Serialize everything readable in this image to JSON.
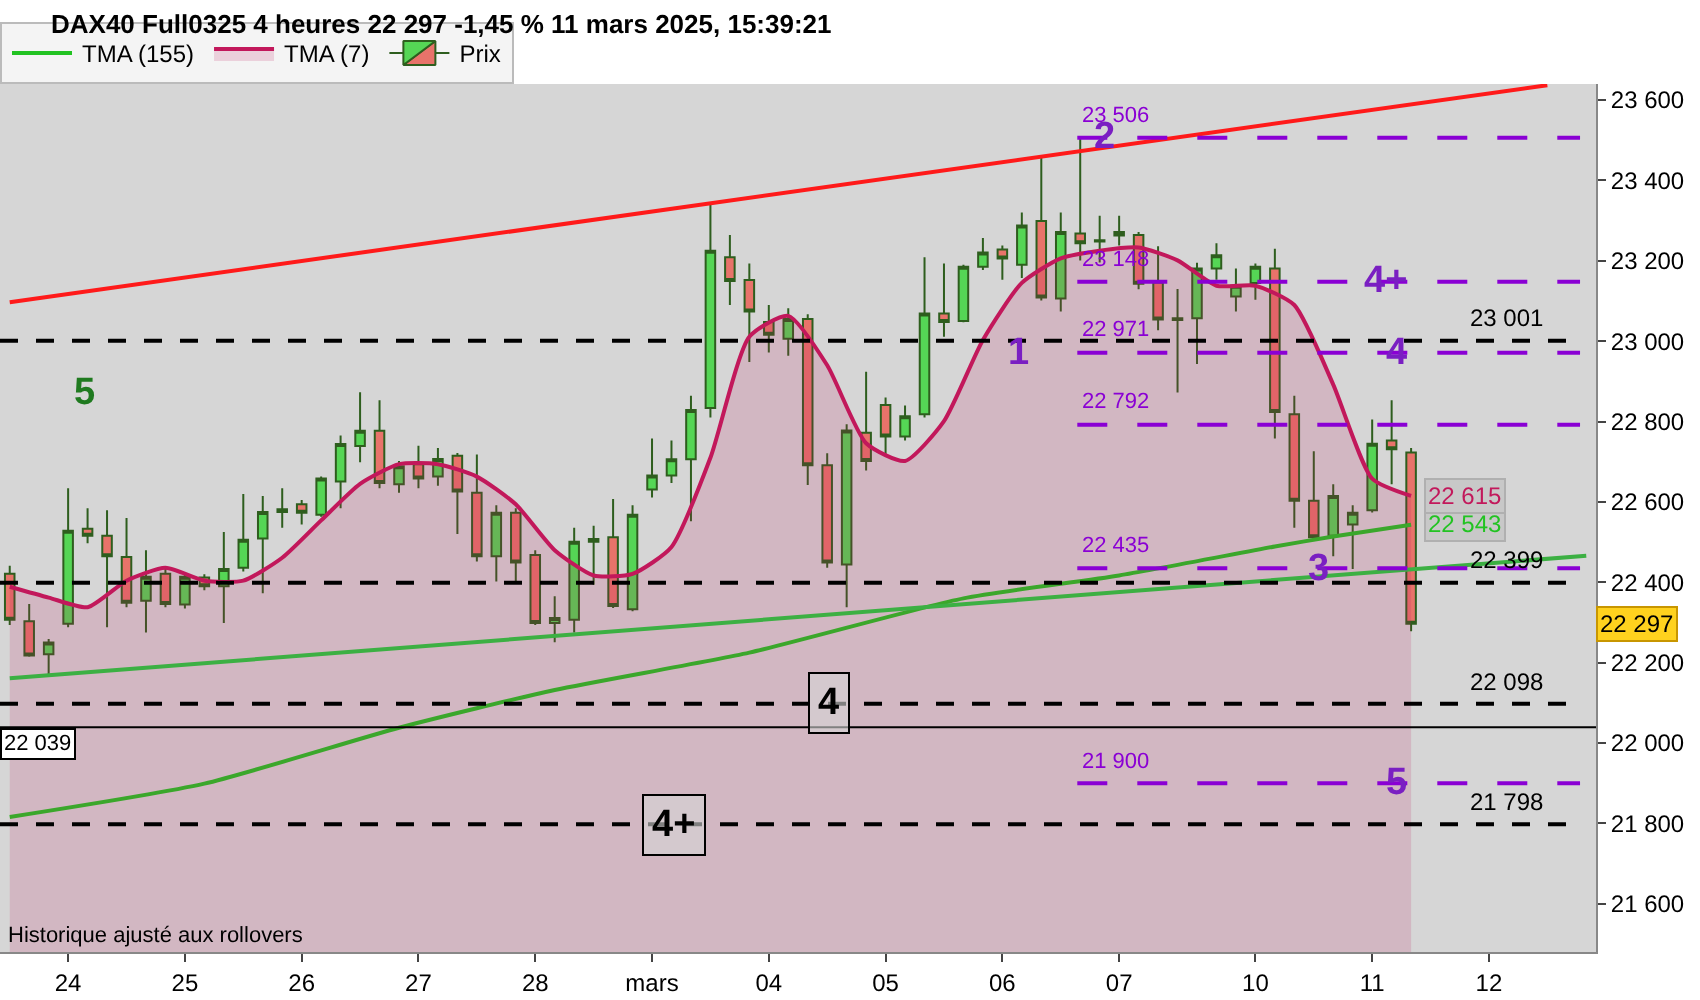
{
  "chart_data": {
    "type": "candlestick",
    "title": "DAX40 Full0325 4 heures 22 297 -1,45 % 11 mars 2025, 15:39:21",
    "categories": [
      null,
      null,
      null,
      "24",
      null,
      null,
      null,
      null,
      null,
      "25",
      null,
      null,
      null,
      null,
      null,
      "26",
      null,
      null,
      null,
      null,
      null,
      "27",
      null,
      null,
      null,
      null,
      null,
      "28",
      null,
      null,
      null,
      null,
      null,
      "mars",
      null,
      null,
      null,
      null,
      null,
      "04",
      null,
      null,
      null,
      null,
      null,
      "05",
      null,
      null,
      null,
      null,
      null,
      "06",
      null,
      null,
      null,
      null,
      null,
      "07",
      null,
      null,
      null,
      null,
      null,
      null,
      "10",
      null,
      null,
      null,
      null,
      null,
      "11",
      null,
      null,
      null,
      null,
      null,
      "12",
      null,
      null,
      null,
      null,
      null
    ],
    "series": [
      {
        "name": "Prix",
        "color": "#2e5e1e",
        "ohlc": [
          [
            22421,
            22441,
            22294,
            22307
          ],
          [
            22303,
            22346,
            22215,
            22218
          ],
          [
            22221,
            22259,
            22167,
            22250
          ],
          [
            22297,
            22634,
            22288,
            22528
          ],
          [
            22533,
            22584,
            22497,
            22516
          ],
          [
            22516,
            22579,
            22288,
            22465
          ],
          [
            22463,
            22560,
            22338,
            22349
          ],
          [
            22354,
            22480,
            22275,
            22414
          ],
          [
            22421,
            22433,
            22338,
            22346
          ],
          [
            22345,
            22425,
            22335,
            22414
          ],
          [
            22412,
            22420,
            22380,
            22390
          ],
          [
            22390,
            22525,
            22299,
            22433
          ],
          [
            22436,
            22620,
            22427,
            22506
          ],
          [
            22509,
            22615,
            22373,
            22575
          ],
          [
            22575,
            22634,
            22536,
            22582
          ],
          [
            22594,
            22605,
            22544,
            22573
          ],
          [
            22568,
            22663,
            22563,
            22658
          ],
          [
            22651,
            22765,
            22584,
            22744
          ],
          [
            22739,
            22873,
            22699,
            22777
          ],
          [
            22777,
            22853,
            22634,
            22647
          ],
          [
            22644,
            22702,
            22623,
            22689
          ],
          [
            22694,
            22740,
            22634,
            22658
          ],
          [
            22663,
            22734,
            22640,
            22707
          ],
          [
            22715,
            22722,
            22520,
            22626
          ],
          [
            22623,
            22718,
            22452,
            22465
          ],
          [
            22465,
            22592,
            22402,
            22573
          ],
          [
            22573,
            22584,
            22402,
            22449
          ],
          [
            22468,
            22480,
            22294,
            22299
          ],
          [
            22299,
            22365,
            22251,
            22311
          ],
          [
            22307,
            22536,
            22275,
            22501
          ],
          [
            22501,
            22541,
            22394,
            22508
          ],
          [
            22512,
            22607,
            22336,
            22341
          ],
          [
            22333,
            22592,
            22328,
            22568
          ],
          [
            22631,
            22758,
            22611,
            22666
          ],
          [
            22666,
            22753,
            22647,
            22706
          ],
          [
            22706,
            22864,
            22552,
            22829
          ],
          [
            22834,
            23339,
            22810,
            23225
          ],
          [
            23209,
            23264,
            23090,
            23150
          ],
          [
            23152,
            23193,
            22948,
            23074
          ],
          [
            23048,
            23090,
            22972,
            23016
          ],
          [
            23006,
            23082,
            22964,
            23055
          ],
          [
            23055,
            23067,
            22642,
            22691
          ],
          [
            22691,
            22721,
            22436,
            22449
          ],
          [
            22444,
            22793,
            22338,
            22778
          ],
          [
            22772,
            22924,
            22678,
            22702
          ],
          [
            22841,
            22860,
            22718,
            22763
          ],
          [
            22763,
            22840,
            22753,
            22813
          ],
          [
            22818,
            23209,
            22810,
            23069
          ],
          [
            23069,
            23193,
            23011,
            23048
          ],
          [
            23050,
            23190,
            23047,
            23185
          ],
          [
            23185,
            23257,
            23177,
            23221
          ],
          [
            23228,
            23238,
            23153,
            23206
          ],
          [
            23190,
            23320,
            23157,
            23288
          ],
          [
            23299,
            23459,
            23101,
            23109
          ],
          [
            23106,
            23320,
            23074,
            23272
          ],
          [
            23268,
            23506,
            23201,
            23244
          ],
          [
            23248,
            23312,
            23196,
            23251
          ],
          [
            23263,
            23312,
            23238,
            23272
          ],
          [
            23264,
            23272,
            23129,
            23143
          ],
          [
            23146,
            23236,
            23027,
            23054
          ],
          [
            23057,
            23130,
            22872,
            23053
          ],
          [
            23057,
            23195,
            22943,
            23181
          ],
          [
            23181,
            23244,
            23153,
            23214
          ],
          [
            23111,
            23181,
            23074,
            23138
          ],
          [
            23145,
            23193,
            23103,
            23185
          ],
          [
            23181,
            23230,
            22758,
            22824
          ],
          [
            22818,
            22864,
            22536,
            22603
          ],
          [
            22603,
            22726,
            22512,
            22512
          ],
          [
            22516,
            22644,
            22465,
            22615
          ],
          [
            22544,
            22592,
            22433,
            22573
          ],
          [
            22579,
            22805,
            22574,
            22745
          ],
          [
            22753,
            22853,
            22644,
            22731
          ],
          [
            22723,
            22734,
            22278,
            22297
          ],
          null,
          null,
          null,
          null,
          null,
          null,
          null,
          null,
          null
        ],
        "value_labels": [
          null,
          null,
          null,
          null,
          null,
          null,
          null,
          null,
          null,
          null,
          null,
          null,
          null,
          null,
          null,
          null,
          null,
          null,
          null,
          null,
          null,
          null,
          null,
          null,
          null,
          null,
          null,
          null,
          null,
          null,
          null,
          null,
          null,
          null,
          null,
          null,
          null,
          null,
          null,
          null,
          null,
          null,
          null,
          null,
          null,
          null,
          null,
          null,
          null,
          null,
          null,
          null,
          null,
          null,
          null,
          null,
          null,
          null,
          null,
          null,
          null,
          null,
          null,
          null,
          null,
          null,
          null,
          null,
          null,
          null,
          null,
          null,
          "22 297",
          null,
          null,
          null,
          null,
          null,
          null,
          null,
          null,
          null
        ]
      },
      {
        "name": "TMA (155)",
        "type": "line",
        "color": "#22c322",
        "values": [
          21816,
          null,
          null,
          null,
          null,
          null,
          null,
          null,
          null,
          null,
          21899,
          null,
          null,
          null,
          null,
          null,
          null,
          null,
          null,
          null,
          22038,
          null,
          null,
          null,
          null,
          null,
          null,
          null,
          22132,
          null,
          null,
          null,
          null,
          null,
          null,
          null,
          null,
          null,
          22225,
          null,
          null,
          null,
          null,
          null,
          null,
          null,
          null,
          null,
          null,
          22360,
          null,
          null,
          null,
          null,
          null,
          null,
          null,
          22417,
          null,
          null,
          null,
          null,
          null,
          null,
          null,
          22489,
          null,
          null,
          22514,
          null,
          null,
          null,
          22543,
          null,
          null,
          null,
          null,
          null,
          null,
          null,
          null,
          null
        ],
        "value_labels": [
          null,
          null,
          null,
          null,
          null,
          null,
          null,
          null,
          null,
          null,
          null,
          null,
          null,
          null,
          null,
          null,
          null,
          null,
          null,
          null,
          null,
          null,
          null,
          null,
          null,
          null,
          null,
          null,
          null,
          null,
          null,
          null,
          null,
          null,
          null,
          null,
          null,
          null,
          null,
          null,
          null,
          null,
          null,
          null,
          null,
          null,
          null,
          null,
          null,
          null,
          null,
          null,
          null,
          null,
          null,
          null,
          null,
          null,
          null,
          null,
          null,
          null,
          null,
          null,
          null,
          null,
          null,
          null,
          null,
          null,
          null,
          null,
          "22 543",
          null,
          null,
          null,
          null,
          null,
          null,
          null,
          null,
          null
        ]
      },
      {
        "name": "TMA (7)",
        "type": "area",
        "color": "#c2185b",
        "values": [
          22389,
          null,
          22362,
          null,
          22338,
          null,
          22404,
          null,
          22436,
          null,
          22404,
          null,
          22404,
          null,
          22461,
          null,
          22554,
          null,
          22645,
          null,
          22694,
          null,
          22694,
          null,
          22663,
          null,
          22594,
          null,
          22480,
          null,
          22417,
          null,
          22421,
          null,
          22488,
          null,
          22710,
          null,
          23011,
          null,
          23063,
          null,
          22940,
          null,
          22746,
          null,
          22702,
          null,
          22801,
          null,
          23003,
          null,
          23145,
          null,
          23206,
          null,
          23225,
          null,
          23233,
          null,
          23201,
          null,
          23138,
          null,
          23138,
          null,
          23090,
          null,
          22892,
          null,
          22658,
          null,
          22615,
          null,
          null,
          null,
          null,
          null,
          null,
          null,
          null,
          null
        ],
        "value_labels": [
          null,
          null,
          null,
          null,
          null,
          null,
          null,
          null,
          null,
          null,
          null,
          null,
          null,
          null,
          null,
          null,
          null,
          null,
          null,
          null,
          null,
          null,
          null,
          null,
          null,
          null,
          null,
          null,
          null,
          null,
          null,
          null,
          null,
          null,
          null,
          null,
          null,
          null,
          null,
          null,
          null,
          null,
          null,
          null,
          null,
          null,
          null,
          null,
          null,
          null,
          null,
          null,
          null,
          null,
          null,
          null,
          null,
          null,
          null,
          null,
          null,
          null,
          null,
          null,
          null,
          null,
          null,
          null,
          null,
          null,
          null,
          null,
          "22 615",
          null,
          null,
          null,
          null,
          null,
          null,
          null,
          null,
          null
        ]
      },
      {
        "type": "line",
        "color": "#ff1a1a",
        "values": [
          23097,
          null,
          null,
          null,
          null,
          null,
          null,
          null,
          null,
          null,
          null,
          null,
          null,
          null,
          null,
          null,
          null,
          null,
          null,
          null,
          null,
          null,
          null,
          null,
          null,
          null,
          null,
          null,
          null,
          null,
          null,
          null,
          null,
          null,
          null,
          null,
          null,
          null,
          null,
          null,
          null,
          null,
          null,
          null,
          null,
          null,
          null,
          null,
          null,
          null,
          null,
          null,
          null,
          null,
          null,
          null,
          null,
          null,
          null,
          null,
          null,
          null,
          null,
          null,
          null,
          null,
          null,
          null,
          null,
          null,
          null,
          null,
          null,
          null,
          null,
          null,
          null,
          null,
          null,
          23637,
          null,
          null
        ]
      },
      {
        "type": "line",
        "color": "#3cb043",
        "values": [
          22161,
          null,
          null,
          null,
          null,
          null,
          null,
          null,
          null,
          null,
          null,
          null,
          null,
          null,
          null,
          null,
          null,
          null,
          null,
          null,
          null,
          null,
          null,
          null,
          null,
          null,
          null,
          null,
          null,
          null,
          null,
          null,
          null,
          null,
          null,
          null,
          null,
          null,
          null,
          null,
          null,
          null,
          null,
          null,
          null,
          null,
          null,
          null,
          null,
          null,
          null,
          null,
          null,
          null,
          null,
          null,
          null,
          null,
          null,
          null,
          null,
          null,
          null,
          null,
          null,
          null,
          null,
          null,
          null,
          null,
          null,
          null,
          null,
          null,
          null,
          null,
          null,
          null,
          null,
          null,
          null,
          22466
        ]
      }
    ],
    "ref_lines": [
      {
        "axis": "y",
        "value": 23001,
        "label": "23 001",
        "color": "#000000",
        "line_style": "dashed"
      },
      {
        "axis": "y",
        "value": 22399,
        "label": "22 399",
        "color": "#000000",
        "line_style": "dashed"
      },
      {
        "axis": "y",
        "value": 22098,
        "label": "22 098",
        "color": "#000000",
        "line_style": "dashed"
      },
      {
        "axis": "y",
        "value": 21798,
        "label": "21 798",
        "color": "#000000",
        "line_style": "dashed"
      },
      {
        "axis": "y",
        "value": 22039,
        "label": "22 039",
        "color": "#000000",
        "line_style": "solid"
      },
      {
        "axis": "y",
        "value": 23506,
        "label": "23 506",
        "color": "#8a00d4",
        "line_style": "dashed"
      },
      {
        "axis": "y",
        "value": 23148,
        "label": "23 148",
        "color": "#8a00d4",
        "line_style": "dashed"
      },
      {
        "axis": "y",
        "value": 22971,
        "label": "22 971",
        "color": "#8a00d4",
        "line_style": "dashed"
      },
      {
        "axis": "y",
        "value": 22792,
        "label": "22 792",
        "color": "#8a00d4",
        "line_style": "dashed"
      },
      {
        "axis": "y",
        "value": 22435,
        "label": "22 435",
        "color": "#8a00d4",
        "line_style": "dashed"
      },
      {
        "axis": "y",
        "value": 21900,
        "label": "21 900",
        "color": "#8a00d4",
        "line_style": "dashed"
      }
    ],
    "annotations": [
      "5",
      "1",
      {
        "text": "2",
        "y": 23506
      },
      {
        "text": "3",
        "y": 22435
      },
      {
        "text": "4",
        "y": 22971
      },
      {
        "text": "4+",
        "y": 23148
      },
      {
        "text": "5",
        "y": 21900
      },
      {
        "text": "4",
        "y": 22098
      },
      {
        "text": "4+",
        "y": 21798
      },
      "Historique ajusté aux rollovers"
    ],
    "ylim": [
      21480,
      23640
    ],
    "yticks": [
      {
        "value": 21600,
        "label": "21 600"
      },
      {
        "value": 21800,
        "label": "21 800"
      },
      {
        "value": 22000,
        "label": "22 000"
      },
      {
        "value": 22200,
        "label": "22 200"
      },
      {
        "value": 22400,
        "label": "22 400"
      },
      {
        "value": 22600,
        "label": "22 600"
      },
      {
        "value": 22800,
        "label": "22 800"
      },
      {
        "value": 23000,
        "label": "23 000"
      },
      {
        "value": 23200,
        "label": "23 200"
      },
      {
        "value": 23400,
        "label": "23 400"
      },
      {
        "value": 23600,
        "label": "23 600"
      }
    ],
    "grid": false,
    "legend": "top left"
  }
}
